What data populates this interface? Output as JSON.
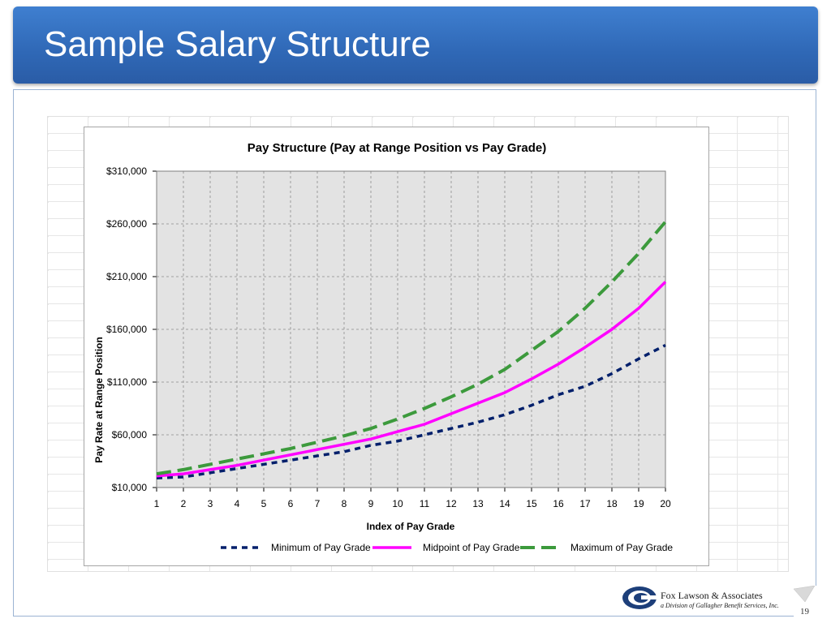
{
  "slide": {
    "title": "Sample Salary Structure",
    "page_number": "19",
    "accent_color": "#2f68b6"
  },
  "footer": {
    "logo_name": "Fox Lawson & Associates",
    "logo_tagline": "a Division of Gallagher Benefit Services, Inc.",
    "logo_icon": "fox-lawson-logo-icon"
  },
  "chart_data": {
    "type": "line",
    "title": "Pay Structure (Pay at Range Position vs Pay Grade)",
    "xlabel": "Index of Pay Grade",
    "ylabel": "Pay Rate at Range Position",
    "categories": [
      "1",
      "2",
      "3",
      "4",
      "5",
      "6",
      "7",
      "8",
      "9",
      "10",
      "11",
      "12",
      "13",
      "14",
      "15",
      "16",
      "17",
      "18",
      "19",
      "20"
    ],
    "ylim": [
      10000,
      310000
    ],
    "yticks": [
      10000,
      60000,
      110000,
      160000,
      210000,
      260000,
      310000
    ],
    "ytick_labels": [
      "$10,000",
      "$60,000",
      "$110,000",
      "$160,000",
      "$210,000",
      "$260,000",
      "$310,000"
    ],
    "grid": true,
    "legend_position": "bottom",
    "series": [
      {
        "name": "Minimum of Pay Grade",
        "color": "#001f6b",
        "dash": "short",
        "values": [
          19000,
          20000,
          24000,
          28000,
          32000,
          36000,
          40000,
          44000,
          50000,
          54000,
          60000,
          66000,
          72000,
          79000,
          88000,
          98000,
          106000,
          118000,
          132000,
          145000
        ]
      },
      {
        "name": "Midpoint of Pay Grade",
        "color": "#ff00ff",
        "dash": "solid",
        "values": [
          21000,
          23000,
          27000,
          31000,
          36000,
          41000,
          46000,
          51000,
          56000,
          63000,
          70000,
          80000,
          90000,
          100000,
          113000,
          127000,
          143000,
          160000,
          180000,
          205000
        ]
      },
      {
        "name": "Maximum of Pay Grade",
        "color": "#3c9a3c",
        "dash": "long",
        "values": [
          23000,
          27000,
          32000,
          37000,
          42000,
          47000,
          53000,
          59000,
          66000,
          75000,
          85000,
          96000,
          108000,
          122000,
          140000,
          158000,
          180000,
          205000,
          232000,
          262000
        ]
      }
    ]
  }
}
